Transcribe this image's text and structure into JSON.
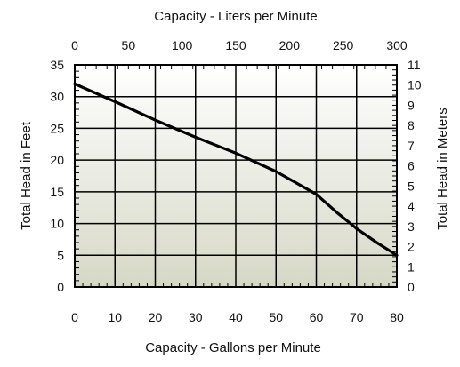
{
  "chart_data": {
    "type": "line",
    "title": "",
    "top_axis": {
      "label": "Capacity - Liters per Minute",
      "range": [
        0,
        300
      ],
      "ticks": [
        "0",
        "50",
        "100",
        "150",
        "200",
        "250",
        "300"
      ]
    },
    "bottom_axis": {
      "label": "Capacity - Gallons per Minute",
      "range": [
        0,
        80
      ],
      "ticks": [
        "0",
        "10",
        "20",
        "30",
        "40",
        "50",
        "60",
        "70",
        "80"
      ]
    },
    "left_axis": {
      "label": "Total Head in Feet",
      "range": [
        0,
        35
      ],
      "ticks": [
        "0",
        "5",
        "10",
        "15",
        "20",
        "25",
        "30",
        "35"
      ]
    },
    "right_axis": {
      "label": "Total Head in Meters",
      "range": [
        0,
        11
      ],
      "ticks": [
        "0",
        "1",
        "2",
        "3",
        "4",
        "5",
        "6",
        "7",
        "8",
        "9",
        "10",
        "11"
      ]
    },
    "grid": true,
    "background_gradient": [
      "#ffffff",
      "#d6d8c6"
    ],
    "series": [
      {
        "color": "#000000",
        "x": [
          0,
          10,
          20,
          30,
          40,
          50,
          60,
          65,
          70,
          75,
          80
        ],
        "y": [
          32,
          29.2,
          26.3,
          23.6,
          21.1,
          18.2,
          14.6,
          11.8,
          9.2,
          7.0,
          5.0
        ]
      }
    ]
  }
}
